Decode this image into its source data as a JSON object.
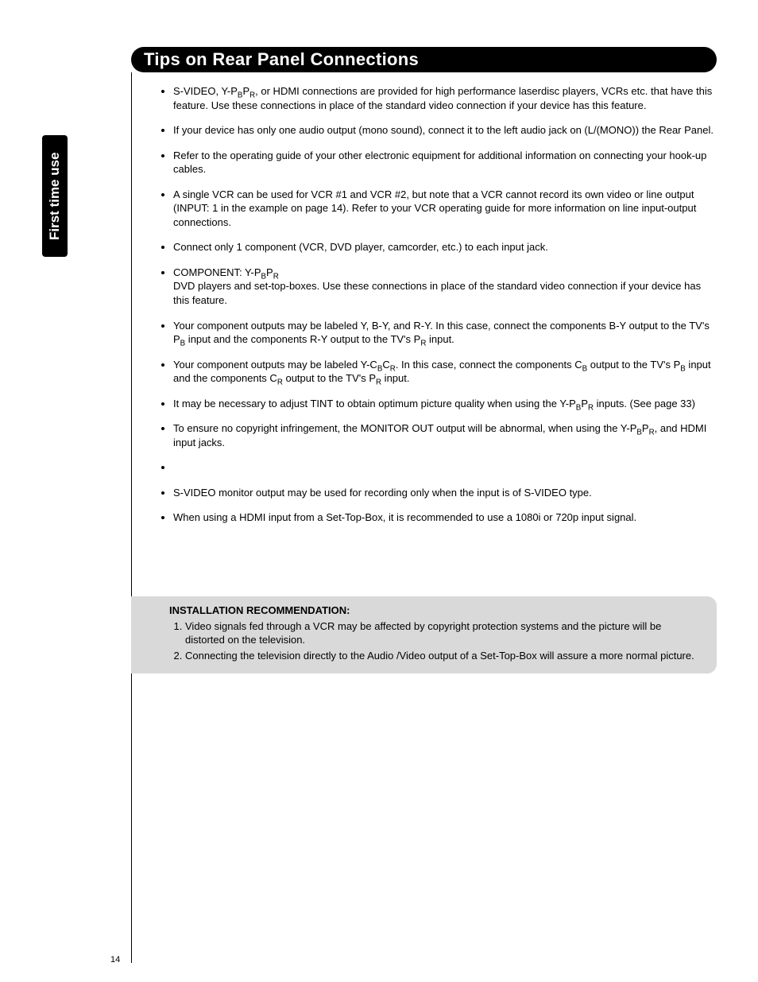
{
  "sideTab": "First time use",
  "title": "Tips on Rear Panel Connections",
  "pageNumber": "14",
  "bullets": {
    "b1a": "S-VIDEO, Y-P",
    "b1b": "P",
    "b1c": ", or HDMI connections are provided for high performance laserdisc players, VCRs etc. that have this feature. Use these connections in place of the standard video connection if your device has this feature.",
    "b2": "If your device has only one audio output (mono sound), connect it to the left audio jack on (L/(MONO)) the Rear Panel.",
    "b3": "Refer to the operating guide of your other electronic equipment for additional information on connecting your hook-up cables.",
    "b4": "A single VCR can be used for VCR #1 and VCR #2, but note that a VCR cannot record its own video or line output (INPUT:  1 in the example on page 14).  Refer to your VCR operating guide for more information on line input-output connections.",
    "b5": "Connect only 1 component (VCR, DVD player, camcorder, etc.) to each input jack.",
    "b6a": "COMPONENT: Y-P",
    "b6b": "P",
    "b6c": "DVD players and set-top-boxes. Use  these connections in place of the standard video connection if your device has this feature.",
    "b7a": "Your component outputs may be labeled Y, B-Y, and R-Y. In this case,  connect  the components B-Y output to the TV's P",
    "b7b": " input and the components R-Y output to the TV's P",
    "b7c": " input.",
    "b8a": "Your component outputs may be labeled Y-C",
    "b8b": "C",
    "b8c": ".  In this case, connect the components C",
    "b8d": " output to the TV's P",
    "b8e": " input and the components C",
    "b8f": " output to the TV's P",
    "b8g": " input.",
    "b9a": "It may be necessary to adjust TINT to obtain optimum picture quality when using the Y-P",
    "b9b": "P",
    "b9c": " inputs. (See page 33)",
    "b10a": "To ensure no copyright infringement, the MONITOR OUT output will be abnormal, when using the Y-P",
    "b10b": "P",
    "b10c": ", and HDMI input jacks.",
    "b11": "",
    "b12": "S-VIDEO monitor output may be used for recording only when the input is of S-VIDEO type.",
    "b13": "When using a HDMI input from a Set-Top-Box, it is recommended to use a 1080i or 720p input signal."
  },
  "sub": {
    "B": "B",
    "R": "R"
  },
  "rec": {
    "title": "INSTALLATION RECOMMENDATION:",
    "i1": "Video signals fed through a VCR may be affected by copyright protection systems and the picture will be distorted on the television.",
    "i2": "Connecting the television directly to the Audio /Video output of a Set-Top-Box will assure a more normal picture."
  }
}
